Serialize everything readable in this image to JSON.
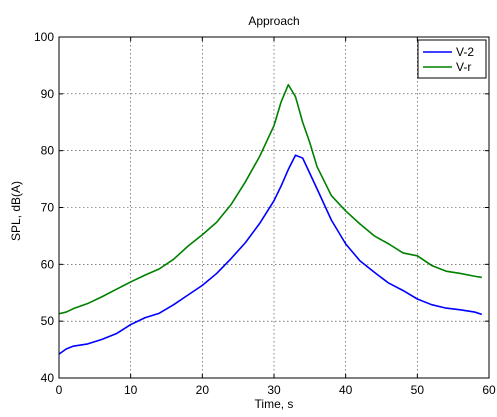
{
  "chart_data": {
    "type": "line",
    "title": "Approach",
    "xlabel": "Time, s",
    "ylabel": "SPL, dB(A)",
    "xlim": [
      0,
      60
    ],
    "ylim": [
      40,
      100
    ],
    "xticks": [
      0,
      10,
      20,
      30,
      40,
      50,
      60
    ],
    "yticks": [
      40,
      50,
      60,
      70,
      80,
      90,
      100
    ],
    "grid": true,
    "legend_position": "top-right",
    "series": [
      {
        "name": "V-2",
        "color": "#0000ff",
        "x": [
          0,
          1,
          2,
          4,
          6,
          8,
          10,
          12,
          14,
          16,
          18,
          20,
          22,
          24,
          26,
          28,
          30,
          31,
          32,
          33,
          34,
          35,
          36,
          38,
          40,
          42,
          44,
          46,
          48,
          50,
          52,
          54,
          56,
          58,
          59
        ],
        "y": [
          44.2,
          45.1,
          45.6,
          46.0,
          46.8,
          47.8,
          49.4,
          50.6,
          51.4,
          52.9,
          54.6,
          56.3,
          58.4,
          61.0,
          63.8,
          67.2,
          71.2,
          73.8,
          76.7,
          79.2,
          78.7,
          76.0,
          73.3,
          67.8,
          63.6,
          60.6,
          58.6,
          56.7,
          55.4,
          53.9,
          52.9,
          52.3,
          52.0,
          51.6,
          51.2
        ]
      },
      {
        "name": "V-r",
        "color": "#008000",
        "x": [
          0,
          1,
          2,
          4,
          6,
          8,
          10,
          12,
          14,
          16,
          18,
          20,
          22,
          24,
          26,
          28,
          30,
          31,
          32,
          33,
          34,
          35,
          36,
          38,
          40,
          42,
          44,
          46,
          48,
          50,
          52,
          54,
          56,
          58,
          59
        ],
        "y": [
          51.3,
          51.6,
          52.2,
          53.1,
          54.3,
          55.6,
          56.9,
          58.1,
          59.2,
          60.9,
          63.2,
          65.2,
          67.4,
          70.5,
          74.5,
          79.0,
          84.4,
          88.6,
          91.6,
          89.5,
          85.0,
          81.4,
          77.2,
          72.1,
          69.4,
          67.1,
          65.0,
          63.6,
          62.0,
          61.5,
          59.8,
          58.8,
          58.4,
          57.9,
          57.7
        ]
      }
    ]
  }
}
